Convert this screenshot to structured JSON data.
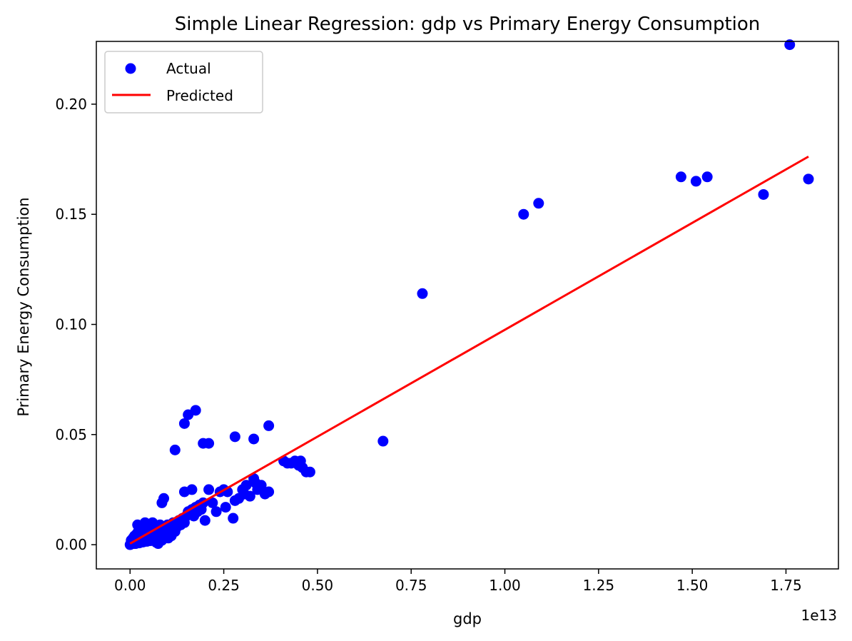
{
  "chart_data": {
    "type": "scatter",
    "title": "Simple Linear Regression: gdp vs Primary Energy Consumption",
    "xlabel": "gdp",
    "ylabel": "Primary Energy Consumption",
    "x_offset_label": "1e13",
    "xlim": [
      -0.09,
      1.89
    ],
    "ylim": [
      -0.011,
      0.2285
    ],
    "x_ticks": [
      0.0,
      0.25,
      0.5,
      0.75,
      1.0,
      1.25,
      1.5,
      1.75
    ],
    "x_tick_labels": [
      "0.00",
      "0.25",
      "0.50",
      "0.75",
      "1.00",
      "1.25",
      "1.50",
      "1.75"
    ],
    "y_ticks": [
      0.0,
      0.05,
      0.1,
      0.15,
      0.2
    ],
    "y_tick_labels": [
      "0.00",
      "0.05",
      "0.10",
      "0.15",
      "0.20"
    ],
    "grid": false,
    "legend": {
      "placement": "top-left",
      "entries": [
        "Actual",
        "Predicted"
      ]
    },
    "colors": {
      "actual": "#0000ff",
      "predicted": "#ff0000"
    },
    "series": [
      {
        "name": "Actual",
        "kind": "scatter",
        "points": [
          [
            0.0,
            0.0
          ],
          [
            0.005,
            0.001
          ],
          [
            0.01,
            0.0005
          ],
          [
            0.015,
            0.002
          ],
          [
            0.02,
            0.001
          ],
          [
            0.025,
            0.003
          ],
          [
            0.03,
            0.0015
          ],
          [
            0.035,
            0.004
          ],
          [
            0.04,
            0.002
          ],
          [
            0.045,
            0.005
          ],
          [
            0.05,
            0.003
          ],
          [
            0.055,
            0.006
          ],
          [
            0.06,
            0.002
          ],
          [
            0.065,
            0.004
          ],
          [
            0.07,
            0.007
          ],
          [
            0.075,
            0.003
          ],
          [
            0.08,
            0.005
          ],
          [
            0.085,
            0.008
          ],
          [
            0.09,
            0.004
          ],
          [
            0.095,
            0.006
          ],
          [
            0.1,
            0.009
          ],
          [
            0.105,
            0.005
          ],
          [
            0.11,
            0.007
          ],
          [
            0.115,
            0.01
          ],
          [
            0.12,
            0.006
          ],
          [
            0.125,
            0.008
          ],
          [
            0.13,
            0.011
          ],
          [
            0.135,
            0.009
          ],
          [
            0.14,
            0.012
          ],
          [
            0.145,
            0.01
          ],
          [
            0.15,
            0.013
          ],
          [
            0.155,
            0.015
          ],
          [
            0.16,
            0.014
          ],
          [
            0.165,
            0.016
          ],
          [
            0.17,
            0.013
          ],
          [
            0.175,
            0.017
          ],
          [
            0.18,
            0.015
          ],
          [
            0.185,
            0.018
          ],
          [
            0.19,
            0.016
          ],
          [
            0.195,
            0.019
          ],
          [
            0.02,
            0.009
          ],
          [
            0.04,
            0.01
          ],
          [
            0.06,
            0.01
          ],
          [
            0.08,
            0.009
          ],
          [
            0.003,
            0.002
          ],
          [
            0.008,
            0.003
          ],
          [
            0.012,
            0.004
          ],
          [
            0.018,
            0.005
          ],
          [
            0.022,
            0.006
          ],
          [
            0.028,
            0.007
          ],
          [
            0.032,
            0.003
          ],
          [
            0.038,
            0.008
          ],
          [
            0.042,
            0.005
          ],
          [
            0.048,
            0.002
          ],
          [
            0.052,
            0.007
          ],
          [
            0.058,
            0.004
          ],
          [
            0.062,
            0.008
          ],
          [
            0.068,
            0.005
          ],
          [
            0.072,
            0.002
          ],
          [
            0.078,
            0.006
          ],
          [
            0.082,
            0.003
          ],
          [
            0.088,
            0.007
          ],
          [
            0.092,
            0.005
          ],
          [
            0.098,
            0.008
          ],
          [
            0.102,
            0.003
          ],
          [
            0.07,
            0.001
          ],
          [
            0.075,
            0.0005
          ],
          [
            0.085,
            0.002
          ],
          [
            0.11,
            0.004
          ],
          [
            0.12,
            0.009
          ],
          [
            0.015,
            0.0005
          ],
          [
            0.025,
            0.0008
          ],
          [
            0.035,
            0.0012
          ],
          [
            0.045,
            0.0015
          ],
          [
            0.055,
            0.0018
          ],
          [
            0.09,
            0.021
          ],
          [
            0.085,
            0.019
          ],
          [
            0.12,
            0.043
          ],
          [
            0.145,
            0.055
          ],
          [
            0.155,
            0.059
          ],
          [
            0.175,
            0.061
          ],
          [
            0.195,
            0.046
          ],
          [
            0.21,
            0.046
          ],
          [
            0.145,
            0.024
          ],
          [
            0.165,
            0.025
          ],
          [
            0.2,
            0.011
          ],
          [
            0.21,
            0.025
          ],
          [
            0.22,
            0.019
          ],
          [
            0.23,
            0.015
          ],
          [
            0.24,
            0.024
          ],
          [
            0.25,
            0.025
          ],
          [
            0.255,
            0.017
          ],
          [
            0.26,
            0.024
          ],
          [
            0.275,
            0.012
          ],
          [
            0.28,
            0.02
          ],
          [
            0.29,
            0.021
          ],
          [
            0.3,
            0.025
          ],
          [
            0.305,
            0.023
          ],
          [
            0.31,
            0.027
          ],
          [
            0.32,
            0.022
          ],
          [
            0.33,
            0.03
          ],
          [
            0.335,
            0.028
          ],
          [
            0.34,
            0.025
          ],
          [
            0.35,
            0.027
          ],
          [
            0.36,
            0.023
          ],
          [
            0.37,
            0.024
          ],
          [
            0.28,
            0.049
          ],
          [
            0.33,
            0.048
          ],
          [
            0.37,
            0.054
          ],
          [
            0.41,
            0.038
          ],
          [
            0.42,
            0.037
          ],
          [
            0.43,
            0.037
          ],
          [
            0.44,
            0.038
          ],
          [
            0.45,
            0.036
          ],
          [
            0.455,
            0.038
          ],
          [
            0.46,
            0.035
          ],
          [
            0.47,
            0.033
          ],
          [
            0.48,
            0.033
          ],
          [
            0.675,
            0.047
          ],
          [
            0.78,
            0.114
          ],
          [
            1.05,
            0.15
          ],
          [
            1.09,
            0.155
          ],
          [
            1.47,
            0.167
          ],
          [
            1.51,
            0.165
          ],
          [
            1.54,
            0.167
          ],
          [
            1.69,
            0.159
          ],
          [
            1.76,
            0.227
          ],
          [
            1.81,
            0.166
          ]
        ]
      },
      {
        "name": "Predicted",
        "kind": "line",
        "points": [
          [
            0.0,
            0.0005
          ],
          [
            1.81,
            0.1762
          ]
        ]
      }
    ]
  }
}
